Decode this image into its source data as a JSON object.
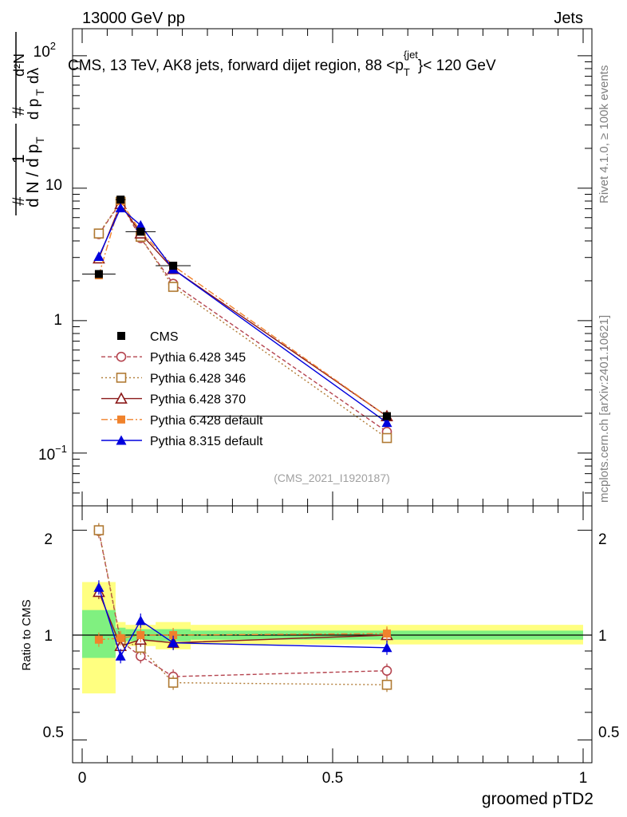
{
  "header": {
    "left": "13000 GeV pp",
    "right": "Jets"
  },
  "side_labels": {
    "rivet": "Rivet 4.1.0, ≥ 100k events",
    "mcplots": "mcplots.cern.ch [arXiv:2401.10621]"
  },
  "chart_data": [
    {
      "type": "line",
      "title": "CMS, 13 TeV, AK8 jets, forward dijet region, 88 <p_T^{jet}< 120 GeV",
      "watermark": "(CMS_2021_I1920187)",
      "ylabel": "1/(dN/dpT) d^2N/(dpT dlambda)",
      "yscale": "log",
      "ylim": [
        0.04,
        160
      ],
      "xlim": [
        -0.02,
        1.02
      ],
      "y_tick_labels": [
        "10^-1",
        "1",
        "10",
        "10^2"
      ],
      "x": [
        0.0333,
        0.0767,
        0.1167,
        0.1817,
        0.6083
      ],
      "xerr": [
        0.0333,
        0.01,
        0.03,
        0.035,
        0.39
      ],
      "legend_position": "bottom-left",
      "series": [
        {
          "name": "CMS",
          "color": "#000000",
          "marker": "square-filled",
          "line": "none",
          "values": [
            2.25,
            8.2,
            4.7,
            2.6,
            0.19
          ]
        },
        {
          "name": "Pythia 6.428 345",
          "color": "#b5444f",
          "marker": "circle-open",
          "line": "dashed",
          "values": [
            4.5,
            7.8,
            4.2,
            1.9,
            0.145
          ]
        },
        {
          "name": "Pythia 6.428 346",
          "color": "#b07a33",
          "marker": "square-open",
          "line": "dotted",
          "values": [
            4.55,
            7.9,
            4.3,
            1.8,
            0.13
          ]
        },
        {
          "name": "Pythia 6.428 370",
          "color": "#8b1a1a",
          "marker": "triangle-open",
          "line": "solid",
          "values": [
            2.95,
            7.6,
            4.55,
            2.45,
            0.19
          ]
        },
        {
          "name": "Pythia 6.428 default",
          "color": "#f0822c",
          "marker": "square-filled",
          "line": "dashdot",
          "values": [
            2.2,
            8.0,
            4.7,
            2.6,
            0.19
          ]
        },
        {
          "name": "Pythia 8.315 default",
          "color": "#0000dd",
          "marker": "triangle-filled",
          "line": "solid",
          "values": [
            3.05,
            7.1,
            5.25,
            2.45,
            0.17
          ]
        }
      ]
    },
    {
      "type": "line",
      "ylabel": "Ratio to CMS",
      "xlabel": "groomed pTD2",
      "yscale": "log",
      "ylim": [
        0.43,
        2.35
      ],
      "xlim": [
        -0.02,
        1.02
      ],
      "y_tick_labels": [
        "0.5",
        "1",
        "2"
      ],
      "x_tick_labels": [
        "0",
        "0.5",
        "1"
      ],
      "x": [
        0.0333,
        0.0767,
        0.1167,
        0.1817,
        0.6083
      ],
      "uncertainty_bands": {
        "edges": [
          0,
          0.0667,
          0.0867,
          0.1467,
          0.2167,
          1.0
        ],
        "inner": [
          [
            0.86,
            1.18
          ],
          [
            0.95,
            1.05
          ],
          [
            0.96,
            1.04
          ],
          [
            0.96,
            1.04
          ],
          [
            0.97,
            1.03
          ]
        ],
        "outer": [
          [
            0.68,
            1.42
          ],
          [
            0.92,
            1.09
          ],
          [
            0.93,
            1.07
          ],
          [
            0.91,
            1.09
          ],
          [
            0.94,
            1.07
          ]
        ],
        "inner_color": "#80f080",
        "outer_color": "#ffff80"
      },
      "series": [
        {
          "name": "Pythia 6.428 345",
          "values": [
            1.99,
            0.96,
            0.87,
            0.76,
            0.79
          ]
        },
        {
          "name": "Pythia 6.428 346",
          "values": [
            2.0,
            0.97,
            0.92,
            0.73,
            0.72
          ]
        },
        {
          "name": "Pythia 6.428 370",
          "values": [
            1.33,
            0.93,
            0.97,
            0.95,
            1.0
          ]
        },
        {
          "name": "Pythia 6.428 default",
          "values": [
            0.97,
            0.98,
            1.0,
            1.0,
            1.01
          ]
        },
        {
          "name": "Pythia 8.315 default",
          "values": [
            1.37,
            0.87,
            1.1,
            0.95,
            0.92
          ]
        }
      ]
    }
  ]
}
